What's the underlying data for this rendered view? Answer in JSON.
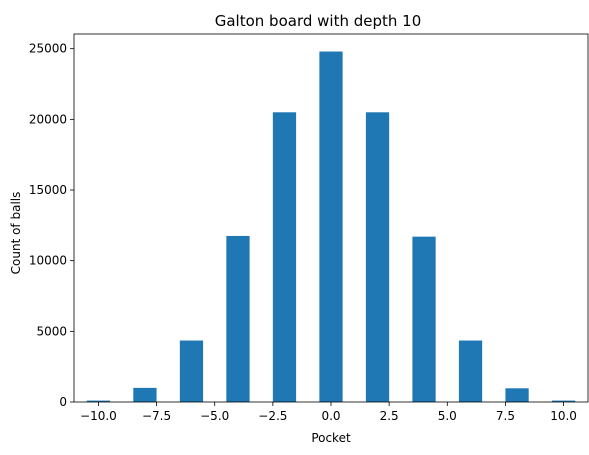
{
  "chart_data": {
    "type": "bar",
    "title": "Galton board with depth 10",
    "xlabel": "Pocket",
    "ylabel": "Count of balls",
    "x": [
      -10,
      -8,
      -6,
      -4,
      -2,
      0,
      2,
      4,
      6,
      8,
      10
    ],
    "values": [
      100,
      1000,
      4350,
      11750,
      20500,
      24800,
      20500,
      11700,
      4350,
      970,
      100
    ],
    "bar_width": 1.0,
    "xlim": [
      -11.05,
      11.05
    ],
    "ylim": [
      0,
      26040
    ],
    "xticks": [
      -10,
      -7.5,
      -5,
      -2.5,
      0,
      2.5,
      5,
      7.5,
      10
    ],
    "xtick_labels": [
      "−10.0",
      "−7.5",
      "−5.0",
      "−2.5",
      "0.0",
      "2.5",
      "5.0",
      "7.5",
      "10.0"
    ],
    "yticks": [
      0,
      5000,
      10000,
      15000,
      20000,
      25000
    ],
    "ytick_labels": [
      "0",
      "5000",
      "10000",
      "15000",
      "20000",
      "25000"
    ],
    "grid": false,
    "legend": "none",
    "bar_color": "#1f77b4"
  }
}
